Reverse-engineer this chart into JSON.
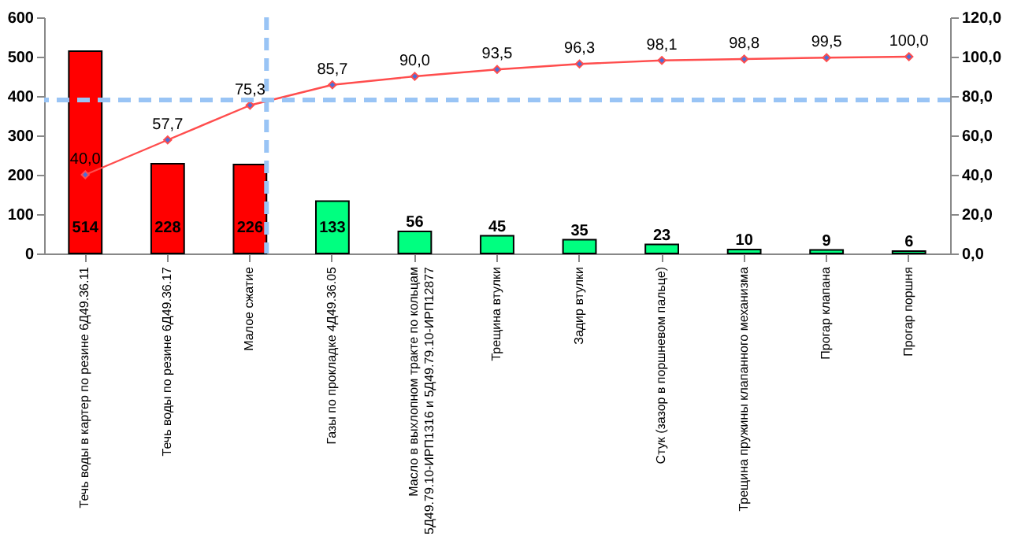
{
  "chart_data": {
    "type": "bar",
    "categories": [
      "Течь воды в картер по резине 6Д49.36.11",
      "Течь воды по резине 6Д49.36.17",
      "Малое сжатие",
      "Газы по прокладке 4Д49.36.05",
      "Масло в выхлопном тракте по кольцам\n5Д49.79.10-ИРП1316 и 5Д49.79.10-ИРП12877",
      "Трещина втулки",
      "Задир втулки",
      "Стук (зазор в поршневом пальце)",
      "Трещина пружины клапанного механизма",
      "Прогар клапана",
      "Прогар поршня"
    ],
    "series": [
      {
        "colors": [
          "#ff0000",
          "#ff0000",
          "#ff0000",
          "#00ff80",
          "#00ff80",
          "#00ff80",
          "#00ff80",
          "#00ff80",
          "#00ff80",
          "#00ff80",
          "#00ff80"
        ],
        "values": [
          514,
          228,
          226,
          133,
          56,
          45,
          35,
          23,
          10,
          9,
          6
        ],
        "value_labels": [
          "514",
          "228",
          "226",
          "133",
          "56",
          "45",
          "35",
          "23",
          "10",
          "9",
          "6"
        ]
      },
      {
        "type": "line",
        "axis": "y2",
        "color": "#ff4d4d",
        "marker": "diamond",
        "values": [
          40.0,
          57.7,
          75.3,
          85.7,
          90.0,
          93.5,
          96.3,
          98.1,
          98.8,
          99.5,
          100.0
        ],
        "value_labels": [
          "40,0",
          "57,7",
          "75,3",
          "85,7",
          "90,0",
          "93,5",
          "96,3",
          "98,1",
          "98,8",
          "99,5",
          "100,0"
        ]
      }
    ],
    "ylim": [
      0,
      600
    ],
    "yticks": [
      0,
      100,
      200,
      300,
      400,
      500,
      600
    ],
    "y2lim": [
      0,
      120
    ],
    "y2ticks": [
      {
        "value": 0,
        "label": "0,0"
      },
      {
        "value": 20,
        "label": "20,0"
      },
      {
        "value": 40,
        "label": "40,0"
      },
      {
        "value": 60,
        "label": "60,0"
      },
      {
        "value": 80,
        "label": "80,0"
      },
      {
        "value": 100,
        "label": "100,0"
      },
      {
        "value": 120,
        "label": "120,0"
      }
    ],
    "ref_lines": [
      {
        "axis": "y2",
        "value": 78,
        "color": "#99c4f5",
        "line_style": "dashed"
      },
      {
        "axis": "x",
        "value": "Малое сжатие",
        "color": "#99c4f5",
        "line_style": "dashed"
      }
    ],
    "grid": false
  }
}
